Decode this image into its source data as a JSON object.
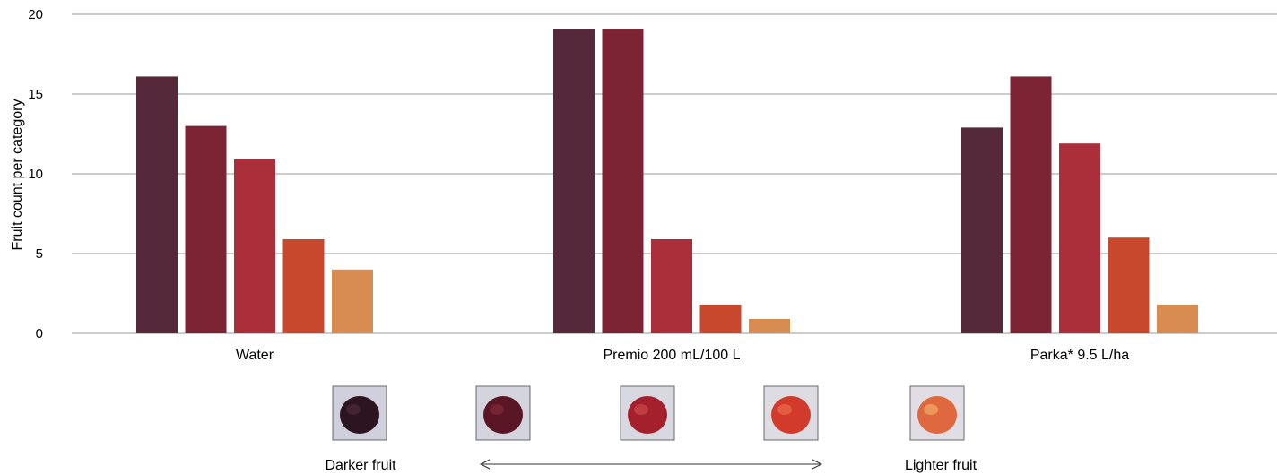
{
  "chart_data": {
    "type": "bar",
    "ylabel": "Fruit count per category",
    "xlabel": "",
    "ylim": [
      0,
      20
    ],
    "yticks": [
      0,
      5,
      10,
      15,
      20
    ],
    "grid": true,
    "categories": [
      "Water",
      "Premio 200 mL/100 L",
      "Parka* 9.5 L/ha"
    ],
    "series": [
      {
        "color": "#55293a",
        "values": [
          16.1,
          19.1,
          12.9
        ]
      },
      {
        "color": "#7c2433",
        "values": [
          13.0,
          19.1,
          16.1
        ]
      },
      {
        "color": "#ab2e3b",
        "values": [
          10.9,
          5.9,
          11.9
        ]
      },
      {
        "color": "#c8482d",
        "values": [
          5.9,
          1.8,
          6.0
        ]
      },
      {
        "color": "#d98c52",
        "values": [
          4.0,
          0.9,
          1.8
        ]
      }
    ],
    "legend": {
      "placement": "bottom",
      "left_label": "Darker fruit",
      "right_label": "Lighter fruit",
      "swatches": [
        {
          "name": "darkest-apple",
          "fruit": "#2c1420",
          "highlight": "#4a2836",
          "bg": "#cfd0dc"
        },
        {
          "name": "dark-apple",
          "fruit": "#5a1624",
          "highlight": "#7e2a38",
          "bg": "#d3d4de"
        },
        {
          "name": "mid-apple",
          "fruit": "#a3202c",
          "highlight": "#c8454a",
          "bg": "#d8d8e0"
        },
        {
          "name": "light-apple",
          "fruit": "#d23a2c",
          "highlight": "#e8694a",
          "bg": "#dcdce2"
        },
        {
          "name": "lightest-apple",
          "fruit": "#e0683e",
          "highlight": "#f0a868",
          "bg": "#e0dee4"
        }
      ]
    }
  }
}
